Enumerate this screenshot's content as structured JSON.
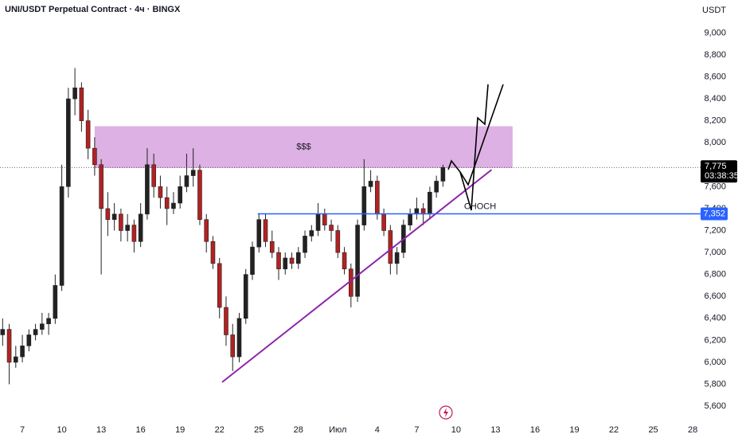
{
  "chart_data": {
    "type": "candlestick",
    "title": "UNI/USDT Perpetual Contract · 4ч · BINGX",
    "currency": "USDT",
    "up_color": "#222222",
    "down_color": "#b22222",
    "xlim": [
      5.3,
      58.6
    ],
    "ylim": [
      5470,
      9300
    ],
    "xticks": [
      {
        "value": 7,
        "label": "7"
      },
      {
        "value": 10,
        "label": "10"
      },
      {
        "value": 13,
        "label": "13"
      },
      {
        "value": 16,
        "label": "16"
      },
      {
        "value": 19,
        "label": "19"
      },
      {
        "value": 22,
        "label": "22"
      },
      {
        "value": 25,
        "label": "25"
      },
      {
        "value": 28,
        "label": "28"
      },
      {
        "value": 31,
        "label": "Июл"
      },
      {
        "value": 34,
        "label": "4"
      },
      {
        "value": 37,
        "label": "7"
      },
      {
        "value": 40,
        "label": "10"
      },
      {
        "value": 43,
        "label": "13"
      },
      {
        "value": 46,
        "label": "16"
      },
      {
        "value": 49,
        "label": "19"
      },
      {
        "value": 52,
        "label": "22"
      },
      {
        "value": 55,
        "label": "25"
      },
      {
        "value": 58,
        "label": "28"
      }
    ],
    "yticks": [
      {
        "value": 5600,
        "label": "5,600"
      },
      {
        "value": 5800,
        "label": "5,800"
      },
      {
        "value": 6000,
        "label": "6,000"
      },
      {
        "value": 6200,
        "label": "6,200"
      },
      {
        "value": 6400,
        "label": "6,400"
      },
      {
        "value": 6600,
        "label": "6,600"
      },
      {
        "value": 6800,
        "label": "6,800"
      },
      {
        "value": 7000,
        "label": "7,000"
      },
      {
        "value": 7200,
        "label": "7,200"
      },
      {
        "value": 7400,
        "label": "7,400"
      },
      {
        "value": 7600,
        "label": "7,600"
      },
      {
        "value": 7800,
        "label": "7,800"
      },
      {
        "value": 8000,
        "label": "8,000"
      },
      {
        "value": 8200,
        "label": "8,200"
      },
      {
        "value": 8400,
        "label": "8,400"
      },
      {
        "value": 8600,
        "label": "8,600"
      },
      {
        "value": 8800,
        "label": "8,800"
      },
      {
        "value": 9000,
        "label": "9,000"
      }
    ],
    "x": [
      5.5,
      6,
      6.5,
      7,
      7.5,
      8,
      8.5,
      9,
      9.5,
      10,
      10.5,
      11,
      11.5,
      12,
      12.5,
      13,
      13.5,
      14,
      14.5,
      15,
      15.5,
      16,
      16.5,
      17,
      17.5,
      18,
      18.5,
      19,
      19.5,
      20,
      20.5,
      21,
      21.5,
      22,
      22.5,
      23,
      23.5,
      24,
      24.5,
      25,
      25.5,
      26,
      26.5,
      27,
      27.5,
      28,
      28.5,
      29,
      29.5,
      30,
      30.5,
      31,
      31.5,
      32,
      32.5,
      33,
      33.5,
      34,
      34.5,
      35,
      35.5,
      36,
      36.5,
      37,
      37.5,
      38,
      38.5,
      39
    ],
    "open": [
      6250,
      6300,
      6000,
      6050,
      6150,
      6250,
      6300,
      6350,
      6400,
      6700,
      7600,
      8400,
      8500,
      8200,
      7950,
      7800,
      7400,
      7300,
      7350,
      7200,
      7250,
      7100,
      7350,
      7800,
      7600,
      7500,
      7400,
      7450,
      7600,
      7700,
      7750,
      7300,
      7100,
      6900,
      6500,
      6250,
      6050,
      6400,
      6800,
      7050,
      7300,
      7100,
      7000,
      6850,
      6950,
      6900,
      7000,
      7150,
      7200,
      7350,
      7250,
      7200,
      7000,
      6850,
      6600,
      7250,
      7600,
      7650,
      7350,
      7200,
      6900,
      7000,
      7250,
      7350,
      7400,
      7350,
      7550,
      7650
    ],
    "high": [
      6400,
      6350,
      6150,
      6250,
      6300,
      6350,
      6450,
      6450,
      6800,
      7800,
      8500,
      8680,
      8550,
      8300,
      8050,
      7850,
      7550,
      7450,
      7400,
      7350,
      7300,
      7450,
      7950,
      7900,
      7700,
      7600,
      7550,
      7700,
      7900,
      7950,
      7800,
      7350,
      7150,
      6950,
      6600,
      6350,
      6450,
      6850,
      7100,
      7350,
      7350,
      7200,
      7050,
      7000,
      7000,
      7050,
      7200,
      7250,
      7450,
      7400,
      7300,
      7250,
      7050,
      6900,
      7300,
      7850,
      7750,
      7700,
      7400,
      7250,
      7050,
      7300,
      7400,
      7500,
      7450,
      7600,
      7700,
      7800
    ],
    "low": [
      6150,
      5800,
      5950,
      6000,
      6100,
      6200,
      6250,
      6250,
      6350,
      6650,
      7500,
      8250,
      8100,
      7850,
      7700,
      6800,
      7150,
      7200,
      7100,
      7100,
      7000,
      7050,
      7300,
      7500,
      7400,
      7250,
      7350,
      7400,
      7550,
      7600,
      7250,
      7000,
      6850,
      6400,
      6150,
      5920,
      6000,
      6350,
      6750,
      7000,
      7050,
      6950,
      6750,
      6800,
      6850,
      6850,
      6950,
      7100,
      7150,
      7200,
      7100,
      6950,
      6800,
      6500,
      6550,
      7200,
      7550,
      7300,
      7150,
      6800,
      6800,
      6950,
      7200,
      7300,
      7250,
      7300,
      7500,
      7600
    ],
    "close": [
      6300,
      6000,
      6050,
      6150,
      6250,
      6300,
      6350,
      6400,
      6700,
      7600,
      8400,
      8500,
      8200,
      7950,
      7800,
      7400,
      7300,
      7350,
      7200,
      7250,
      7100,
      7350,
      7800,
      7600,
      7500,
      7400,
      7450,
      7600,
      7700,
      7750,
      7300,
      7100,
      6900,
      6500,
      6250,
      6050,
      6400,
      6800,
      7050,
      7300,
      7100,
      7000,
      6850,
      6950,
      6900,
      7000,
      7150,
      7200,
      7350,
      7250,
      7200,
      7000,
      6850,
      6600,
      7250,
      7600,
      7650,
      7350,
      7200,
      6900,
      7000,
      7250,
      7350,
      7400,
      7350,
      7550,
      7650,
      7775
    ],
    "last_price": {
      "value": 7775,
      "label": "7,775"
    },
    "countdown": "03:38:35",
    "level": {
      "value": 7352,
      "label": "7,352",
      "start": 24.9,
      "color": "#2962ff"
    },
    "zone": {
      "x": [
        12.5,
        44.3
      ],
      "y": [
        7770,
        8150
      ],
      "label": "$$$",
      "color": "#d9a8e0"
    },
    "trendline": {
      "x": [
        22.2,
        42.7
      ],
      "y": [
        5819,
        7754
      ],
      "color": "#8e24aa"
    },
    "annotation": "CHOCH"
  }
}
